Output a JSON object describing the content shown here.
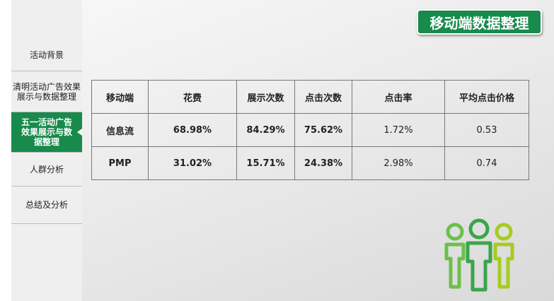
{
  "sidebar": {
    "items": [
      {
        "label": "活动背景"
      },
      {
        "label": "清明活动广告效果展示与数据整理"
      },
      {
        "label": "五一活动广告效果展示与数据整理",
        "active": true
      },
      {
        "label": "人群分析"
      },
      {
        "label": "总结及分析"
      }
    ]
  },
  "header": {
    "title": "移动端数据整理"
  },
  "table": {
    "headers": [
      "移动端",
      "花费",
      "展示次数",
      "点击次数",
      "点击率",
      "平均点击价格"
    ],
    "rows": [
      [
        "信息流",
        "68.98%",
        "84.29%",
        "75.62%",
        "1.72%",
        "0.53"
      ],
      [
        "PMP",
        "31.02%",
        "15.71%",
        "24.38%",
        "2.98%",
        "0.74"
      ]
    ]
  },
  "colors": {
    "accent": "#178a4c"
  },
  "icons": {
    "decoration": "people-group-icon"
  }
}
